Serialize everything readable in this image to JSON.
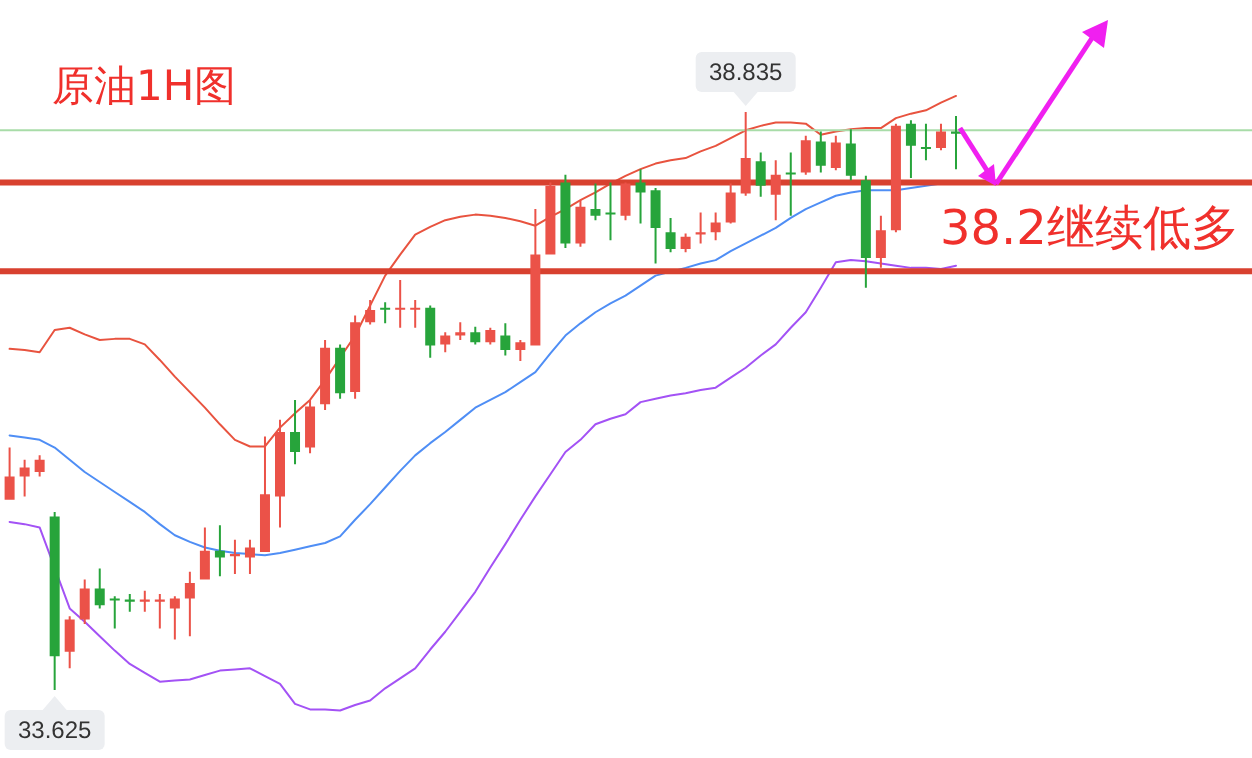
{
  "chart_data": {
    "type": "candlestick",
    "title": "原油1H图",
    "categories": [
      null,
      null,
      null,
      null,
      null,
      null,
      null,
      null,
      null,
      null,
      null,
      null,
      null,
      null,
      null,
      null,
      null,
      null,
      null,
      null,
      null,
      null,
      null,
      null,
      null,
      null,
      null,
      null,
      null,
      null,
      null,
      null,
      null,
      null,
      null,
      null,
      null,
      null,
      null,
      null,
      null,
      null,
      null,
      null,
      null,
      null,
      null,
      null,
      null,
      null,
      null,
      null,
      null,
      null,
      null,
      null,
      null,
      null,
      null,
      null,
      null,
      null,
      null,
      null
    ],
    "ohlc": [
      [
        35.34,
        35.81,
        35.34,
        35.55
      ],
      [
        35.55,
        35.7,
        35.37,
        35.63
      ],
      [
        35.59,
        35.74,
        35.55,
        35.7
      ],
      [
        35.19,
        35.23,
        33.625,
        33.93
      ],
      [
        33.97,
        34.29,
        33.82,
        34.26
      ],
      [
        34.26,
        34.62,
        34.22,
        34.54
      ],
      [
        34.54,
        34.72,
        34.36,
        34.39
      ],
      [
        34.45,
        34.47,
        34.18,
        34.44
      ],
      [
        34.44,
        34.49,
        34.33,
        34.42
      ],
      [
        34.42,
        34.52,
        34.33,
        34.44
      ],
      [
        34.42,
        34.49,
        34.18,
        34.44
      ],
      [
        34.36,
        34.47,
        34.08,
        34.45
      ],
      [
        34.45,
        34.69,
        34.11,
        34.59
      ],
      [
        34.62,
        35.09,
        34.62,
        34.88
      ],
      [
        34.88,
        35.11,
        34.65,
        34.82
      ],
      [
        34.83,
        34.98,
        34.67,
        34.85
      ],
      [
        34.82,
        34.98,
        34.67,
        34.91
      ],
      [
        34.87,
        35.91,
        34.87,
        35.39
      ],
      [
        35.37,
        36.06,
        35.09,
        35.95
      ],
      [
        35.95,
        36.24,
        35.66,
        35.77
      ],
      [
        35.81,
        36.24,
        35.76,
        36.18
      ],
      [
        36.2,
        36.78,
        36.15,
        36.71
      ],
      [
        36.71,
        36.74,
        36.25,
        36.3
      ],
      [
        36.31,
        37.0,
        36.25,
        36.94
      ],
      [
        36.94,
        37.14,
        36.92,
        37.05
      ],
      [
        37.07,
        37.12,
        36.93,
        37.06
      ],
      [
        37.06,
        37.32,
        36.89,
        37.07
      ],
      [
        37.06,
        37.14,
        36.89,
        37.07
      ],
      [
        37.07,
        37.09,
        36.62,
        36.73
      ],
      [
        36.74,
        36.85,
        36.67,
        36.82
      ],
      [
        36.82,
        36.94,
        36.78,
        36.85
      ],
      [
        36.85,
        36.9,
        36.74,
        36.76
      ],
      [
        36.76,
        36.89,
        36.74,
        36.87
      ],
      [
        36.82,
        36.93,
        36.64,
        36.69
      ],
      [
        36.69,
        36.78,
        36.59,
        36.76
      ],
      [
        36.73,
        37.96,
        36.73,
        37.55
      ],
      [
        37.55,
        38.2,
        37.55,
        38.17
      ],
      [
        38.2,
        38.27,
        37.61,
        37.65
      ],
      [
        37.65,
        38.04,
        37.62,
        37.98
      ],
      [
        37.96,
        38.19,
        37.86,
        37.9
      ],
      [
        37.93,
        38.2,
        37.68,
        37.92
      ],
      [
        37.9,
        38.2,
        37.86,
        38.19
      ],
      [
        38.2,
        38.32,
        37.83,
        38.11
      ],
      [
        38.13,
        38.15,
        37.47,
        37.79
      ],
      [
        37.75,
        37.88,
        37.57,
        37.6
      ],
      [
        37.6,
        37.74,
        37.57,
        37.71
      ],
      [
        37.73,
        37.93,
        37.65,
        37.75
      ],
      [
        37.75,
        37.93,
        37.68,
        37.84
      ],
      [
        37.84,
        38.19,
        37.83,
        38.11
      ],
      [
        38.1,
        38.835,
        38.08,
        38.42
      ],
      [
        38.39,
        38.47,
        38.07,
        38.17
      ],
      [
        38.09,
        38.4,
        37.86,
        38.27
      ],
      [
        38.29,
        38.47,
        37.9,
        38.28
      ],
      [
        38.29,
        38.62,
        38.27,
        38.58
      ],
      [
        38.57,
        38.66,
        38.29,
        38.35
      ],
      [
        38.33,
        38.62,
        38.31,
        38.56
      ],
      [
        38.55,
        38.68,
        38.22,
        38.26
      ],
      [
        38.22,
        38.26,
        37.25,
        37.52
      ],
      [
        37.52,
        37.9,
        37.43,
        37.77
      ],
      [
        37.77,
        38.73,
        37.75,
        38.71
      ],
      [
        38.73,
        38.76,
        38.24,
        38.53
      ],
      [
        38.52,
        38.73,
        38.4,
        38.51
      ],
      [
        38.51,
        38.73,
        38.49,
        38.66
      ],
      [
        38.66,
        38.8,
        38.32,
        38.64
      ]
    ],
    "colors": [
      "#eb5248",
      "#eb5248",
      "#eb5248",
      "#27a43b",
      "#eb5248",
      "#eb5248",
      "#27a43b",
      "#27a43b",
      "#27a43b",
      "#eb5248",
      "#eb5248",
      "#eb5248",
      "#eb5248",
      "#eb5248",
      "#27a43b",
      "#eb5248",
      "#eb5248",
      "#eb5248",
      "#eb5248",
      "#27a43b",
      "#eb5248",
      "#eb5248",
      "#27a43b",
      "#eb5248",
      "#eb5248",
      "#27a43b",
      "#eb5248",
      "#eb5248",
      "#27a43b",
      "#eb5248",
      "#eb5248",
      "#27a43b",
      "#eb5248",
      "#27a43b",
      "#eb5248",
      "#eb5248",
      "#eb5248",
      "#27a43b",
      "#eb5248",
      "#27a43b",
      "#27a43b",
      "#eb5248",
      "#27a43b",
      "#27a43b",
      "#27a43b",
      "#eb5248",
      "#eb5248",
      "#eb5248",
      "#eb5248",
      "#eb5248",
      "#27a43b",
      "#eb5248",
      "#27a43b",
      "#eb5248",
      "#27a43b",
      "#eb5248",
      "#27a43b",
      "#27a43b",
      "#eb5248",
      "#eb5248",
      "#27a43b",
      "#27a43b",
      "#eb5248",
      "#27a43b"
    ],
    "series": [
      {
        "type": "line",
        "color": "#e8533f",
        "values": [
          36.7,
          36.69,
          36.67,
          36.87,
          36.89,
          36.83,
          36.78,
          36.79,
          36.79,
          36.74,
          36.6,
          36.45,
          36.31,
          36.17,
          36.02,
          35.88,
          35.82,
          35.82,
          35.99,
          36.12,
          36.24,
          36.42,
          36.62,
          36.82,
          37.09,
          37.36,
          37.55,
          37.73,
          37.8,
          37.86,
          37.89,
          37.91,
          37.9,
          37.88,
          37.85,
          37.81,
          37.89,
          37.96,
          38.04,
          38.11,
          38.19,
          38.26,
          38.32,
          38.37,
          38.4,
          38.42,
          38.48,
          38.53,
          38.6,
          38.67,
          38.71,
          38.74,
          38.74,
          38.73,
          38.63,
          38.66,
          38.68,
          38.69,
          38.69,
          38.78,
          38.82,
          38.85,
          38.92,
          38.98
        ]
      },
      {
        "type": "line",
        "color": "#4f8ef5",
        "values": [
          35.92,
          35.9,
          35.88,
          35.81,
          35.7,
          35.59,
          35.5,
          35.41,
          35.32,
          35.23,
          35.12,
          35.02,
          34.96,
          34.91,
          34.88,
          34.86,
          34.85,
          34.84,
          34.86,
          34.89,
          34.92,
          34.95,
          35.01,
          35.16,
          35.3,
          35.45,
          35.6,
          35.74,
          35.85,
          35.95,
          36.06,
          36.17,
          36.24,
          36.31,
          36.4,
          36.49,
          36.66,
          36.82,
          36.93,
          37.03,
          37.11,
          37.18,
          37.27,
          37.36,
          null,
          37.43,
          37.47,
          37.5,
          37.58,
          37.65,
          37.72,
          37.79,
          37.88,
          37.96,
          38.02,
          38.08,
          38.11,
          38.13,
          38.13,
          38.13,
          38.15,
          38.17,
          38.19,
          38.21
        ]
      },
      {
        "type": "line",
        "color": "#a352f5",
        "values": [
          35.14,
          35.12,
          35.09,
          null,
          34.36,
          34.24,
          34.11,
          33.98,
          33.86,
          33.78,
          33.7,
          33.71,
          33.72,
          33.76,
          33.8,
          33.81,
          33.82,
          33.75,
          33.68,
          33.5,
          33.45,
          33.45,
          33.44,
          33.49,
          33.53,
          33.64,
          33.73,
          33.82,
          33.99,
          34.15,
          34.33,
          34.51,
          34.73,
          34.94,
          35.16,
          35.37,
          35.57,
          35.77,
          35.88,
          36.02,
          36.07,
          36.11,
          36.22,
          36.25,
          36.28,
          36.3,
          36.33,
          36.35,
          36.44,
          36.53,
          36.64,
          36.74,
          36.89,
          37.03,
          37.25,
          37.48,
          37.5,
          37.49,
          37.47,
          37.45,
          37.43,
          37.43,
          37.42,
          37.45
        ]
      }
    ],
    "ref_lines": [
      {
        "axis": "y",
        "value": 38.2,
        "color": "#d8412f"
      },
      {
        "axis": "y",
        "value": 37.4,
        "color": "#d8412f"
      },
      {
        "axis": "y",
        "value": 38.67,
        "color": "#a8dca8"
      }
    ],
    "annotations": [
      "38.2继续低多",
      {
        "text": "38.835",
        "y": 38.835
      },
      {
        "text": "33.625",
        "y": 33.625
      }
    ]
  }
}
